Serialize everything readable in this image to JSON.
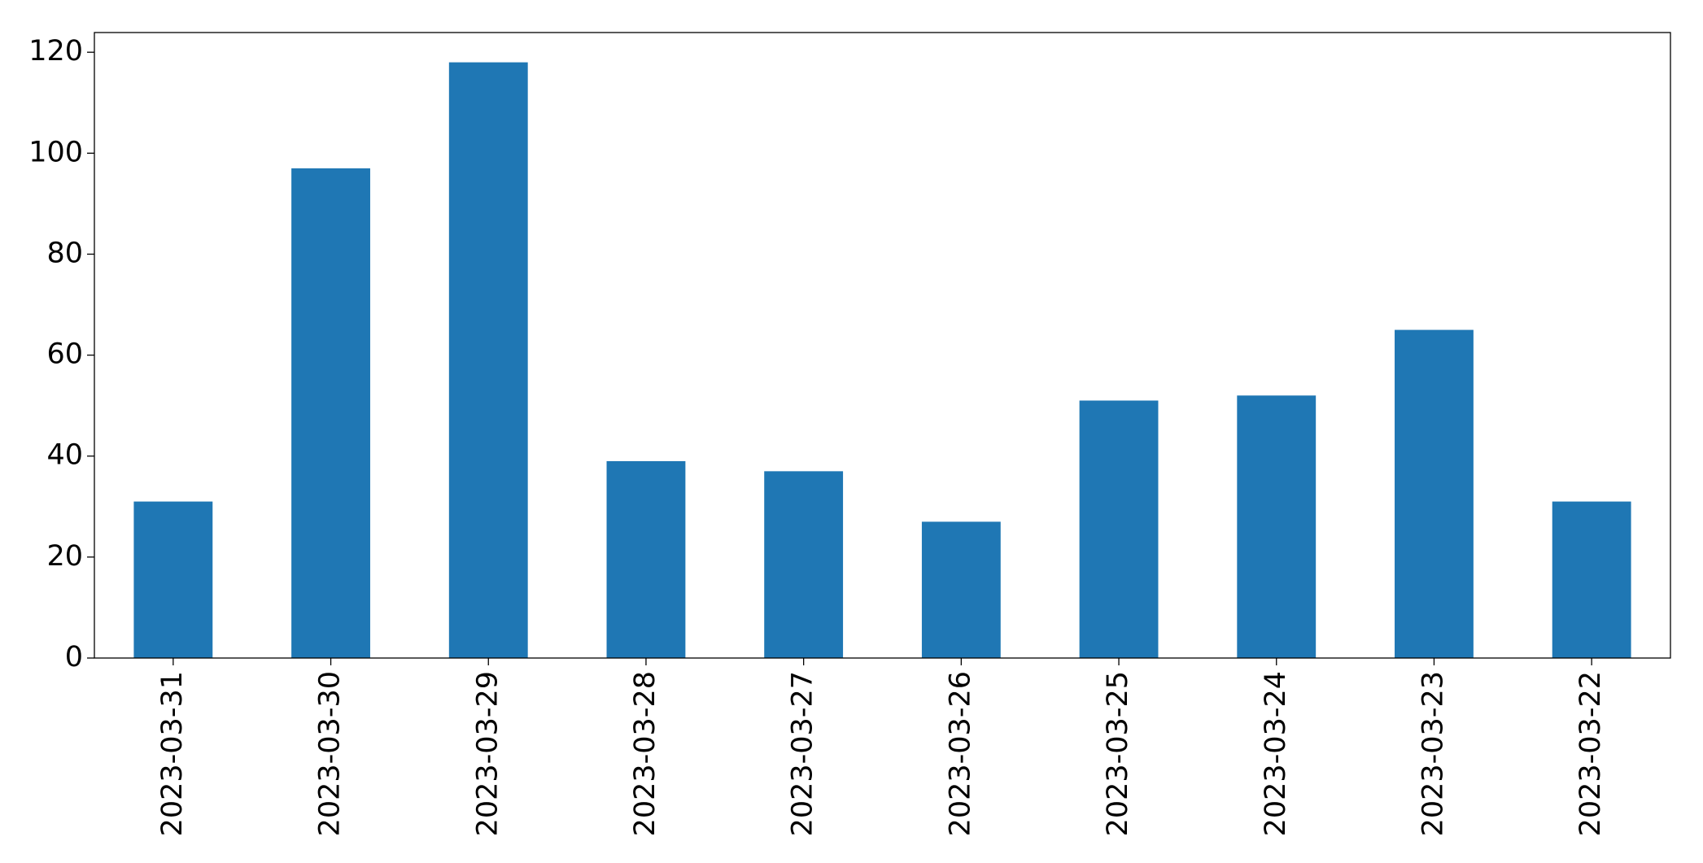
{
  "chart_data": {
    "type": "bar",
    "categories": [
      "2023-03-31",
      "2023-03-30",
      "2023-03-29",
      "2023-03-28",
      "2023-03-27",
      "2023-03-26",
      "2023-03-25",
      "2023-03-24",
      "2023-03-23",
      "2023-03-22"
    ],
    "values": [
      31,
      97,
      118,
      39,
      37,
      27,
      51,
      52,
      65,
      31
    ],
    "color": "#1f77b4",
    "ylim": [
      0,
      123.9
    ],
    "yticks": [
      0,
      20,
      40,
      60,
      80,
      100,
      120
    ],
    "grid": false
  }
}
